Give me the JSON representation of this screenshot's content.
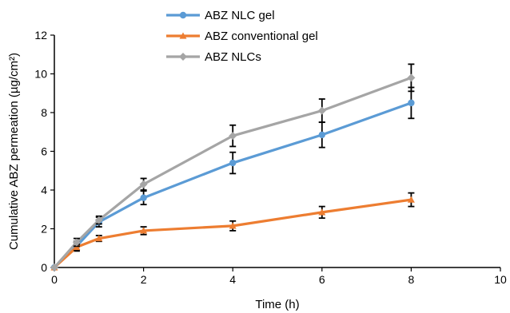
{
  "chart_data": {
    "type": "line",
    "title": "",
    "xlabel": "Time (h)",
    "ylabel": "Cumulative ABZ permeation (µg/cm²)",
    "xlim": [
      0,
      10
    ],
    "ylim": [
      0,
      12
    ],
    "x_ticks": [
      "0",
      "2",
      "4",
      "6",
      "8",
      "10"
    ],
    "y_ticks": [
      "0",
      "2",
      "4",
      "6",
      "8",
      "10",
      "12"
    ],
    "grid": false,
    "legend_position": "top-left",
    "x": [
      0,
      0.5,
      1,
      2,
      4,
      6,
      8
    ],
    "series": [
      {
        "name": "ABZ NLC gel",
        "color": "#5b9bd5",
        "marker": "circle",
        "values": [
          0,
          1.1,
          2.35,
          3.6,
          5.4,
          6.85,
          8.5
        ],
        "errors": [
          0,
          0.25,
          0.25,
          0.35,
          0.55,
          0.65,
          0.8
        ]
      },
      {
        "name": "ABZ conventional gel",
        "color": "#ed7d31",
        "marker": "triangle",
        "values": [
          0,
          1.05,
          1.5,
          1.9,
          2.15,
          2.85,
          3.5
        ],
        "errors": [
          0,
          0.15,
          0.15,
          0.2,
          0.25,
          0.3,
          0.35
        ]
      },
      {
        "name": "ABZ NLCs",
        "color": "#a5a5a5",
        "marker": "diamond",
        "values": [
          0,
          1.3,
          2.45,
          4.3,
          6.8,
          8.1,
          9.8
        ],
        "errors": [
          0,
          0.2,
          0.2,
          0.3,
          0.55,
          0.6,
          0.7
        ]
      }
    ]
  }
}
